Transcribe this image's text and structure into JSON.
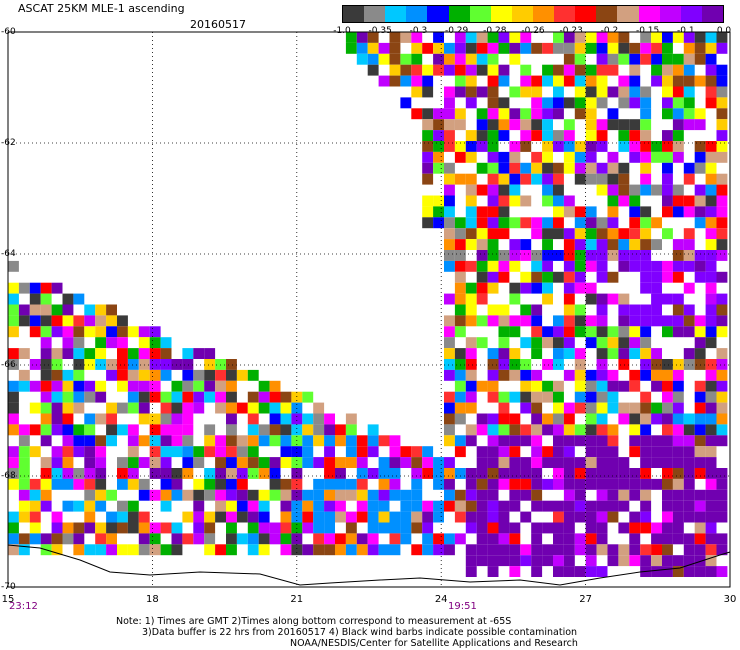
{
  "header": {
    "title": "ASCAT 25KM MLE-1 ascending",
    "date": "20160517"
  },
  "colorbar": {
    "colors": [
      "#3a3a3a",
      "#8a8a8a",
      "#00c8ff",
      "#0090ff",
      "#0000ff",
      "#00b000",
      "#60ff30",
      "#ffff00",
      "#ffcc00",
      "#ff9000",
      "#ff3030",
      "#ff0000",
      "#8b4513",
      "#d2a080",
      "#ff00ff",
      "#c000ff",
      "#8000ff",
      "#7000b0"
    ],
    "labels": [
      "-1.0",
      "-0.35",
      "-0.3",
      "-0.29",
      "-0.28",
      "-0.26",
      "-0.23",
      "-0.2",
      "-0.15",
      "-0.1",
      "0.0"
    ]
  },
  "axes": {
    "y_ticks": [
      "-60",
      "-62",
      "-64",
      "-66",
      "-68",
      "-70"
    ],
    "x_ticks": [
      "15",
      "18",
      "21",
      "24",
      "27",
      "30"
    ],
    "times": [
      "23:12",
      "19:51"
    ]
  },
  "notes": [
    "Note: 1) Times are GMT 2)Times along bottom correspond to measurement at -65S",
    "3)Data buffer is 22 hrs from 20160517 4) Black wind barbs indicate possible contamination",
    "NOAA/NESDIS/Center for Satellite Applications and Research"
  ],
  "map": {
    "type": "swath-grid",
    "lon_range": [
      15,
      30
    ],
    "lat_range": [
      -70,
      -60
    ],
    "grid": true,
    "coastline": true
  }
}
